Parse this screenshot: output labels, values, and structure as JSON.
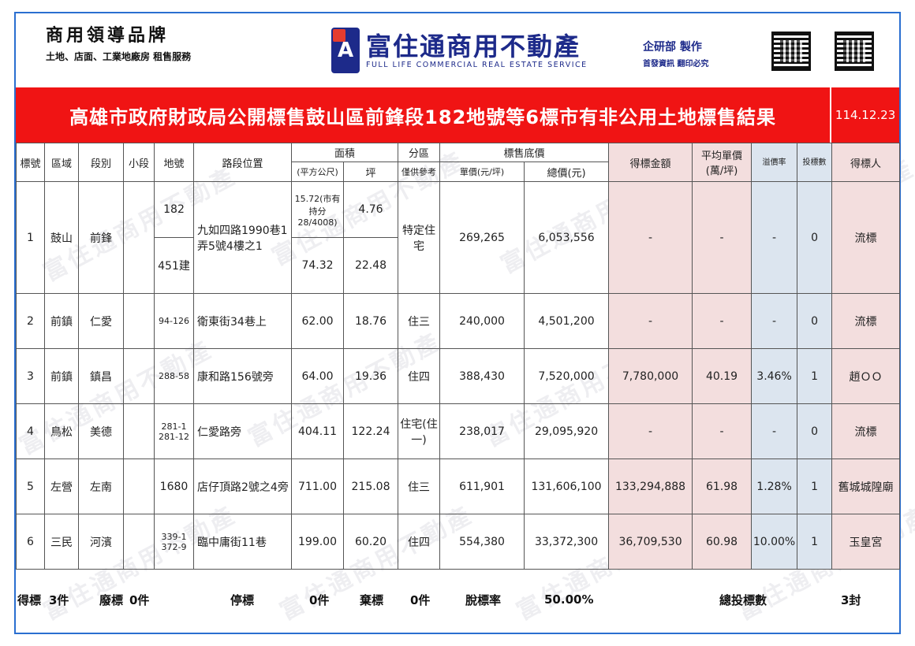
{
  "header": {
    "brand_title": "商用領導品牌",
    "brand_sub": "土地、店面、工業地廠房 租售服務",
    "logo_cn": "富住通商用不動產",
    "logo_en": "FULL LIFE COMMERCIAL REAL ESTATE SERVICE",
    "dept_main": "企研部 製作",
    "dept_sub": "首發資訊 翻印必究"
  },
  "title": {
    "text": "高雄市政府財政局公開標售鼓山區前鋒段182地號等6標市有非公用土地標售結果",
    "date": "114.12.23"
  },
  "columns": {
    "no": "標號",
    "district": "區域",
    "section": "段別",
    "subsection": "小段",
    "lot": "地號",
    "road": "路段位置",
    "area": "面積",
    "area_m2": "(平方公尺)",
    "area_ping": "坪",
    "zone": "分區",
    "zone_note": "僅供參考",
    "base_price": "標售底價",
    "unit_price": "單價(元/坪)",
    "total_price": "總價(元)",
    "winning_amount": "得標金額",
    "avg_price": "平均單價(萬/坪)",
    "premium": "溢價率",
    "bids": "投標數",
    "winner": "得標人"
  },
  "rows": [
    {
      "no": "1",
      "district": "鼓山",
      "section": "前鋒",
      "lot_a": "182",
      "lot_b": "451建",
      "road": "九如四路1990巷1弄5號4樓之1",
      "area_a": "15.72(市有持分28/4008)",
      "ping_a": "4.76",
      "area_b": "74.32",
      "ping_b": "22.48",
      "zone": "特定住宅",
      "unit_price": "269,265",
      "total_price": "6,053,556",
      "winning": "-",
      "avg": "-",
      "premium": "-",
      "bids": "0",
      "winner": "流標"
    },
    {
      "no": "2",
      "district": "前鎮",
      "section": "仁愛",
      "lot": "94-126",
      "road": "衛東街34巷上",
      "area": "62.00",
      "ping": "18.76",
      "zone": "住三",
      "unit_price": "240,000",
      "total_price": "4,501,200",
      "winning": "-",
      "avg": "-",
      "premium": "-",
      "bids": "0",
      "winner": "流標"
    },
    {
      "no": "3",
      "district": "前鎮",
      "section": "鎮昌",
      "lot": "288-58",
      "road": "康和路156號旁",
      "area": "64.00",
      "ping": "19.36",
      "zone": "住四",
      "unit_price": "388,430",
      "total_price": "7,520,000",
      "winning": "7,780,000",
      "avg": "40.19",
      "premium": "3.46%",
      "bids": "1",
      "winner": "趙ＯＯ"
    },
    {
      "no": "4",
      "district": "鳥松",
      "section": "美德",
      "lot": "281-1 281-12",
      "road": "仁愛路旁",
      "area": "404.11",
      "ping": "122.24",
      "zone": "住宅(住一)",
      "unit_price": "238,017",
      "total_price": "29,095,920",
      "winning": "-",
      "avg": "-",
      "premium": "-",
      "bids": "0",
      "winner": "流標"
    },
    {
      "no": "5",
      "district": "左營",
      "section": "左南",
      "lot": "1680",
      "road": "店仔頂路2號之4旁",
      "area": "711.00",
      "ping": "215.08",
      "zone": "住三",
      "unit_price": "611,901",
      "total_price": "131,606,100",
      "winning": "133,294,888",
      "avg": "61.98",
      "premium": "1.28%",
      "bids": "1",
      "winner": "舊城城隍廟"
    },
    {
      "no": "6",
      "district": "三民",
      "section": "河濱",
      "lot": "339-1 372-9",
      "road": "臨中庸街11巷",
      "area": "199.00",
      "ping": "60.20",
      "zone": "住四",
      "unit_price": "554,380",
      "total_price": "33,372,300",
      "winning": "36,709,530",
      "avg": "60.98",
      "premium": "10.00%",
      "bids": "1",
      "winner": "玉皇宮"
    }
  ],
  "footer": {
    "won_label": "得標",
    "won_value": "3件",
    "void_label": "廢標",
    "void_value": "0件",
    "stopped_label": "停標",
    "stopped_value": "0件",
    "abandoned_label": "棄標",
    "abandoned_value": "0件",
    "rate_label": "脫標率",
    "rate_value": "50.00%",
    "total_bids_label": "總投標數",
    "total_bids_value": "3封"
  }
}
